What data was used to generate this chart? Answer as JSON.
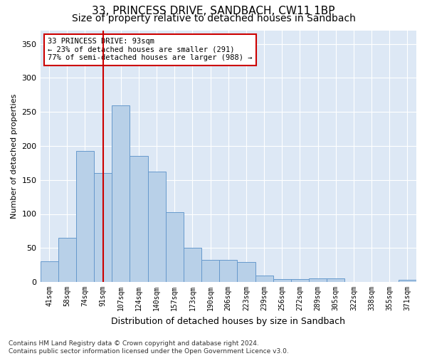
{
  "title": "33, PRINCESS DRIVE, SANDBACH, CW11 1BP",
  "subtitle": "Size of property relative to detached houses in Sandbach",
  "xlabel": "Distribution of detached houses by size in Sandbach",
  "ylabel": "Number of detached properties",
  "categories": [
    "41sqm",
    "58sqm",
    "74sqm",
    "91sqm",
    "107sqm",
    "124sqm",
    "140sqm",
    "157sqm",
    "173sqm",
    "190sqm",
    "206sqm",
    "223sqm",
    "239sqm",
    "256sqm",
    "272sqm",
    "289sqm",
    "305sqm",
    "322sqm",
    "338sqm",
    "355sqm",
    "371sqm"
  ],
  "values": [
    30,
    65,
    193,
    160,
    260,
    185,
    162,
    103,
    50,
    33,
    33,
    29,
    10,
    4,
    4,
    5,
    5,
    0,
    0,
    0,
    3
  ],
  "bar_color": "#b8d0e8",
  "bar_edge_color": "#6699cc",
  "vline_x": 3,
  "vline_color": "#cc0000",
  "annotation_text": "33 PRINCESS DRIVE: 93sqm\n← 23% of detached houses are smaller (291)\n77% of semi-detached houses are larger (988) →",
  "annotation_box_color": "#ffffff",
  "annotation_box_edge_color": "#cc0000",
  "ylim": [
    0,
    370
  ],
  "yticks": [
    0,
    50,
    100,
    150,
    200,
    250,
    300,
    350
  ],
  "background_color": "#dde8f5",
  "grid_color": "#ffffff",
  "footer_text": "Contains HM Land Registry data © Crown copyright and database right 2024.\nContains public sector information licensed under the Open Government Licence v3.0.",
  "title_fontsize": 11,
  "subtitle_fontsize": 10,
  "annotation_fontsize": 7.5,
  "footer_fontsize": 6.5,
  "ylabel_fontsize": 8,
  "xlabel_fontsize": 9,
  "tick_fontsize": 7,
  "ytick_fontsize": 8
}
